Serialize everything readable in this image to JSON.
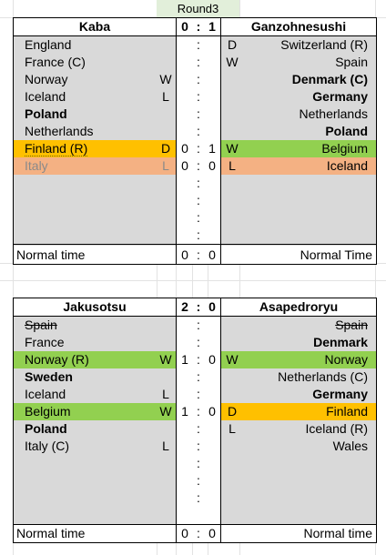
{
  "round_label": "Round3",
  "matches": [
    {
      "home": "Kaba",
      "away": "Ganzohnesushi",
      "home_score": "0",
      "away_score": "1",
      "rows": [
        {
          "left": "England",
          "left_res": "",
          "left_sc": "",
          "colon": ":",
          "right_sc": "",
          "right_res": "D",
          "right": "Switzerland (R)"
        },
        {
          "left": "France (C)",
          "left_res": "",
          "left_sc": "",
          "colon": ":",
          "right_sc": "",
          "right_res": "W",
          "right": "Spain"
        },
        {
          "left": "Norway",
          "left_res": "W",
          "left_sc": "",
          "colon": ":",
          "right_sc": "",
          "right_res": "",
          "right": "Denmark (C)"
        },
        {
          "left": "Iceland",
          "left_res": "L",
          "left_sc": "",
          "colon": ":",
          "right_sc": "",
          "right_res": "",
          "right": "Germany"
        },
        {
          "left": "Poland",
          "left_res": "",
          "left_sc": "",
          "colon": ":",
          "right_sc": "",
          "right_res": "",
          "right": "Netherlands"
        },
        {
          "left": "Netherlands",
          "left_res": "",
          "left_sc": "",
          "colon": ":",
          "right_sc": "",
          "right_res": "",
          "right": "Poland"
        },
        {
          "left": "Finland (R)",
          "left_res": "D",
          "left_sc": "0",
          "colon": ":",
          "right_sc": "1",
          "right_res": "W",
          "right": "Belgium"
        },
        {
          "left": "Italy",
          "left_res": "L",
          "left_sc": "0",
          "colon": ":",
          "right_sc": "0",
          "right_res": "L",
          "right": "Iceland"
        },
        {
          "left": "",
          "left_res": "",
          "left_sc": "",
          "colon": ":",
          "right_sc": "",
          "right_res": "",
          "right": ""
        },
        {
          "left": "",
          "left_res": "",
          "left_sc": "",
          "colon": ":",
          "right_sc": "",
          "right_res": "",
          "right": ""
        },
        {
          "left": "",
          "left_res": "",
          "left_sc": "",
          "colon": ":",
          "right_sc": "",
          "right_res": "",
          "right": ""
        },
        {
          "left": "",
          "left_res": "",
          "left_sc": "",
          "colon": ":",
          "right_sc": "",
          "right_res": "",
          "right": ""
        }
      ],
      "footer": {
        "left": "Normal time",
        "left_sc": "0",
        "colon": ":",
        "right_sc": "0",
        "right": "Normal Time"
      }
    },
    {
      "home": "Jakusotsu",
      "away": "Asapedroryu",
      "home_score": "2",
      "away_score": "0",
      "rows": [
        {
          "left": "Spain",
          "left_res": "",
          "left_sc": "",
          "colon": ":",
          "right_sc": "",
          "right_res": "",
          "right": "Spain"
        },
        {
          "left": "France",
          "left_res": "",
          "left_sc": "",
          "colon": ":",
          "right_sc": "",
          "right_res": "",
          "right": "Denmark"
        },
        {
          "left": "Norway (R)",
          "left_res": "W",
          "left_sc": "1",
          "colon": ":",
          "right_sc": "0",
          "right_res": "W",
          "right": "Norway"
        },
        {
          "left": "Sweden",
          "left_res": "",
          "left_sc": "",
          "colon": ":",
          "right_sc": "",
          "right_res": "",
          "right": "Netherlands (C)"
        },
        {
          "left": "Iceland",
          "left_res": "L",
          "left_sc": "",
          "colon": ":",
          "right_sc": "",
          "right_res": "",
          "right": "Germany"
        },
        {
          "left": "Belgium",
          "left_res": "W",
          "left_sc": "1",
          "colon": ":",
          "right_sc": "0",
          "right_res": "D",
          "right": "Finland"
        },
        {
          "left": "Poland",
          "left_res": "",
          "left_sc": "",
          "colon": ":",
          "right_sc": "",
          "right_res": "L",
          "right": "Iceland (R)"
        },
        {
          "left": "Italy (C)",
          "left_res": "L",
          "left_sc": "",
          "colon": ":",
          "right_sc": "",
          "right_res": "",
          "right": "Wales"
        },
        {
          "left": "",
          "left_res": "",
          "left_sc": "",
          "colon": ":",
          "right_sc": "",
          "right_res": "",
          "right": ""
        },
        {
          "left": "",
          "left_res": "",
          "left_sc": "",
          "colon": ":",
          "right_sc": "",
          "right_res": "",
          "right": ""
        },
        {
          "left": "",
          "left_res": "",
          "left_sc": "",
          "colon": ":",
          "right_sc": "",
          "right_res": "",
          "right": ""
        }
      ],
      "footer": {
        "left": "Normal time",
        "left_sc": "0",
        "colon": ":",
        "right_sc": "0",
        "right": "Normal time"
      }
    }
  ],
  "colors": {
    "win": "#92d050",
    "draw": "#ffc000",
    "loss": "#f4b183",
    "panel": "#d9d9d9",
    "round": "#e2efda"
  }
}
